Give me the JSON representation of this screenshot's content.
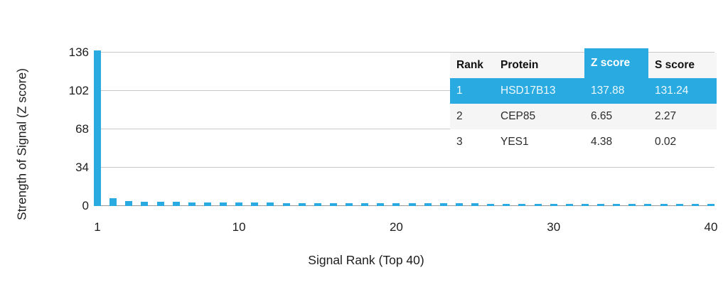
{
  "colors": {
    "accent_blue": "#29ABE2",
    "gridline": "#c9c9c9",
    "axis_line": "#9a9a9a",
    "text": "#1d1d1d",
    "table_header_bg": "#f6f6f6",
    "table_alt_row_bg": "#f5f5f5"
  },
  "chart_data": {
    "type": "bar",
    "title": "",
    "xlabel": "Signal Rank (Top 40)",
    "ylabel": "Strength of Signal (Z score)",
    "ylim": [
      0,
      140
    ],
    "yticks": [
      0,
      34,
      68,
      102,
      136
    ],
    "xticks": [
      1,
      10,
      20,
      30,
      40
    ],
    "grid": "horizontal",
    "n_bars": 40,
    "values": [
      137.88,
      6.65,
      4.38,
      4.05,
      3.95,
      3.85,
      3.45,
      3.3,
      3.2,
      3.1,
      2.95,
      2.85,
      2.8,
      2.75,
      2.7,
      2.6,
      2.55,
      2.5,
      2.45,
      2.4,
      2.38,
      2.35,
      2.3,
      2.28,
      2.25,
      2.2,
      2.18,
      2.15,
      2.1,
      2.08,
      2.05,
      2.0,
      1.98,
      1.95,
      1.93,
      1.9,
      1.88,
      1.85,
      1.83,
      1.8
    ]
  },
  "table": {
    "headers": [
      "Rank",
      "Protein",
      "Z score",
      "S score"
    ],
    "highlight_column_index": 2,
    "rows": [
      {
        "rank": "1",
        "protein": "HSD17B13",
        "z_score": "137.88",
        "s_score": "131.24",
        "highlight": true
      },
      {
        "rank": "2",
        "protein": "CEP85",
        "z_score": "6.65",
        "s_score": "2.27",
        "highlight": false
      },
      {
        "rank": "3",
        "protein": "YES1",
        "z_score": "4.38",
        "s_score": "0.02",
        "highlight": false
      }
    ]
  }
}
